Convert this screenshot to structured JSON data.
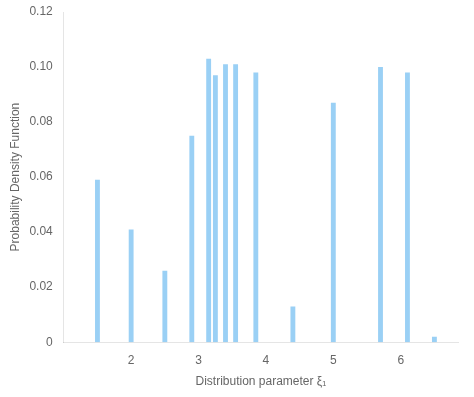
{
  "chart_data": {
    "type": "bar",
    "xlabel": "Distribution parameter ξ₁",
    "ylabel": "Probability Density Function",
    "x": [
      1.5,
      2.0,
      2.5,
      2.9,
      3.15,
      3.25,
      3.4,
      3.55,
      3.85,
      4.4,
      5.0,
      5.7,
      6.1,
      6.5
    ],
    "values": [
      0.059,
      0.041,
      0.026,
      0.075,
      0.103,
      0.097,
      0.101,
      0.101,
      0.098,
      0.013,
      0.087,
      0.1,
      0.098,
      0.002
    ],
    "xlim": [
      1.0,
      6.85
    ],
    "xticks": [
      2,
      3,
      4,
      5,
      6
    ],
    "ylim": [
      0,
      0.12
    ],
    "yticks": [
      0,
      0.02,
      0.04,
      0.06,
      0.08,
      {
        "value": 0.1,
        "label": "0.10"
      },
      0.12
    ],
    "grid": false
  }
}
